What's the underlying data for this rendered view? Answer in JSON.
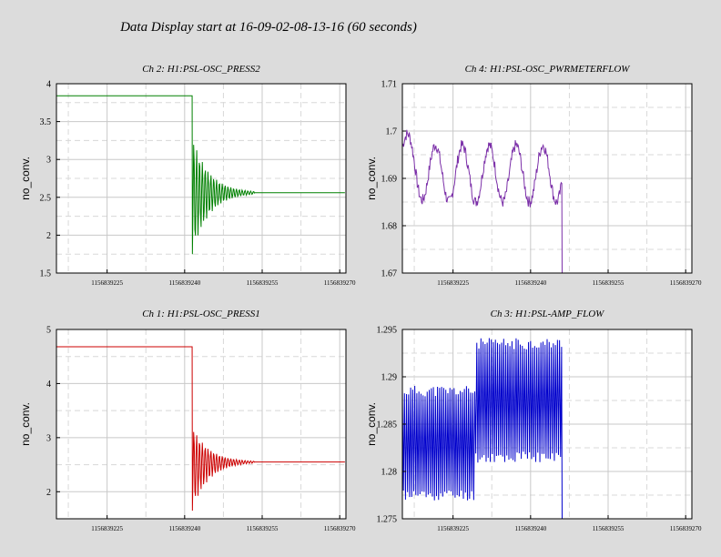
{
  "page": {
    "title": "Data Display start at 16-09-02-08-13-16 (60 seconds)"
  },
  "chart_data": [
    {
      "type": "line",
      "title": "Ch 2: H1:PSL-OSC_PRESS2",
      "ylabel": "no_conv.",
      "xlabel": "",
      "xlim": [
        1156839215.2,
        1156839271.2
      ],
      "ylim": [
        1.5,
        4
      ],
      "yticks": [
        "4",
        "3.5",
        "3",
        "2.5",
        "2",
        "1.5"
      ],
      "xticks": [
        "1156839225",
        "1156839240",
        "1156839255",
        "1156839270"
      ],
      "grid": true,
      "color": "#008000",
      "shape": "step-ringdown",
      "params": {
        "base": 3.84,
        "dropTime": 1156839241.5,
        "min": 1.75,
        "max": 3.3,
        "settle": 2.56,
        "settleEnd": 1156839253.5,
        "endTime": 1156839271.2
      }
    },
    {
      "type": "line",
      "title": "Ch 4: H1:PSL-OSC_PWRMETERFLOW",
      "ylabel": "no_conv.",
      "xlabel": "",
      "xlim": [
        1156839215.2,
        1156839271.2
      ],
      "ylim": [
        1.67,
        1.71
      ],
      "yticks": [
        "1.71",
        "1.7",
        "1.69",
        "1.68",
        "1.67"
      ],
      "xticks": [
        "1156839225",
        "1156839240",
        "1156839255",
        "1156839270"
      ],
      "grid": true,
      "color": "#7b2fa8",
      "shape": "slow-oscillation",
      "params": {
        "mean": 1.691,
        "amp": 0.006,
        "period": 5.2,
        "start": 1.702,
        "endTime": 1156839246.1,
        "dropTo": 1.67
      }
    },
    {
      "type": "line",
      "title": "Ch 1: H1:PSL-OSC_PRESS1",
      "ylabel": "no_conv.",
      "xlabel": "",
      "xlim": [
        1156839215.2,
        1156839271.2
      ],
      "ylim": [
        1.5,
        5
      ],
      "yticks": [
        "5",
        "4",
        "3",
        "2"
      ],
      "yticksValues": [
        5,
        4,
        3,
        2
      ],
      "xticks": [
        "1156839225",
        "1156839240",
        "1156839255",
        "1156839270"
      ],
      "grid": true,
      "color": "#cc0000",
      "shape": "step-ringdown",
      "params": {
        "base": 4.68,
        "dropTime": 1156839241.5,
        "min": 1.65,
        "max": 3.2,
        "settle": 2.55,
        "settleEnd": 1156839253.5,
        "endTime": 1156839271.2
      }
    },
    {
      "type": "line",
      "title": "Ch 3: H1:PSL-AMP_FLOW",
      "ylabel": "no_conv.",
      "xlabel": "",
      "xlim": [
        1156839215.2,
        1156839271.2
      ],
      "ylim": [
        1.275,
        1.295
      ],
      "yticks": [
        "1.295",
        "1.29",
        "1.285",
        "1.28",
        "1.275"
      ],
      "xticks": [
        "1156839225",
        "1156839240",
        "1156839255",
        "1156839270"
      ],
      "grid": true,
      "color": "#0000cc",
      "shape": "fast-oscillation",
      "params": {
        "lowA": 1.2775,
        "highA": 1.2885,
        "lowB": 1.2815,
        "highB": 1.2935,
        "switchTime": 1156839229.4,
        "endTime": 1156839246.1,
        "dropTo": 1.275
      }
    }
  ]
}
